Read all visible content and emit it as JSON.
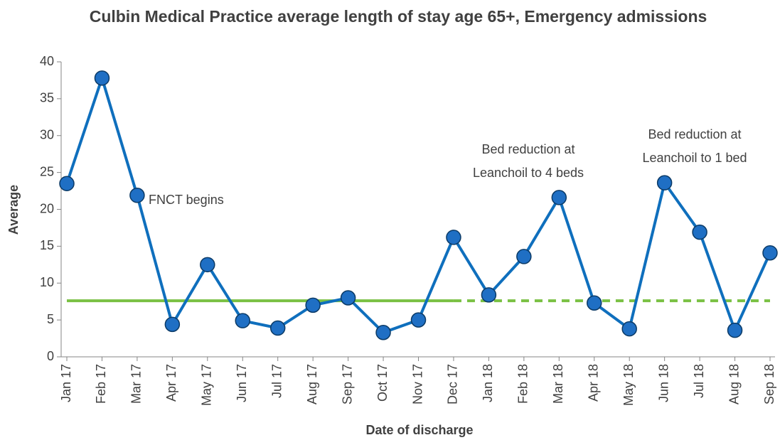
{
  "chart_data": {
    "type": "line",
    "title": "Culbin Medical Practice average length of stay age 65+, Emergency admissions",
    "x_label": "Date of discharge",
    "y_label": "Average",
    "categories": [
      "Jan 17",
      "Feb 17",
      "Mar 17",
      "Apr 17",
      "May 17",
      "Jun 17",
      "Jul 17",
      "Aug 17",
      "Sep 17",
      "Oct 17",
      "Nov 17",
      "Dec 17",
      "Jan 18",
      "Feb 18",
      "Mar 18",
      "Apr 18",
      "May 18",
      "Jun 18",
      "Jul 18",
      "Aug 18",
      "Sep 18"
    ],
    "series": [
      {
        "color": "#0f6fbd",
        "marker_color": "#1f6fc4",
        "marker": true,
        "dashed": false,
        "values": [
          23.5,
          37.8,
          21.9,
          4.4,
          12.5,
          4.9,
          3.9,
          7.0,
          8.0,
          3.3,
          5.0,
          16.2,
          8.4,
          13.6,
          21.6,
          7.3,
          3.8,
          23.6,
          16.9,
          3.6,
          14.1
        ]
      },
      {
        "color": "#7ac143",
        "marker": false,
        "dashed": false,
        "values": [
          7.6,
          7.6,
          7.6,
          7.6,
          7.6,
          7.6,
          7.6,
          7.6,
          7.6,
          7.6,
          7.6,
          7.6,
          null,
          null,
          null,
          null,
          null,
          null,
          null,
          null,
          null
        ]
      },
      {
        "color": "#7ac143",
        "marker": false,
        "dashed": true,
        "values": [
          null,
          null,
          null,
          null,
          null,
          null,
          null,
          null,
          null,
          null,
          null,
          7.6,
          7.6,
          7.6,
          7.6,
          7.6,
          7.6,
          7.6,
          7.6,
          7.6,
          7.6
        ]
      }
    ],
    "annotations": [
      {
        "lines": [
          "FNCT begins"
        ]
      },
      {
        "lines": [
          "Bed reduction at",
          "Leanchoil to 4 beds"
        ]
      },
      {
        "lines": [
          "Bed reduction at",
          "Leanchoil to 1 bed"
        ]
      }
    ],
    "ylim": [
      0,
      40
    ],
    "yticks": [
      0,
      5,
      10,
      15,
      20,
      25,
      30,
      35,
      40
    ]
  }
}
